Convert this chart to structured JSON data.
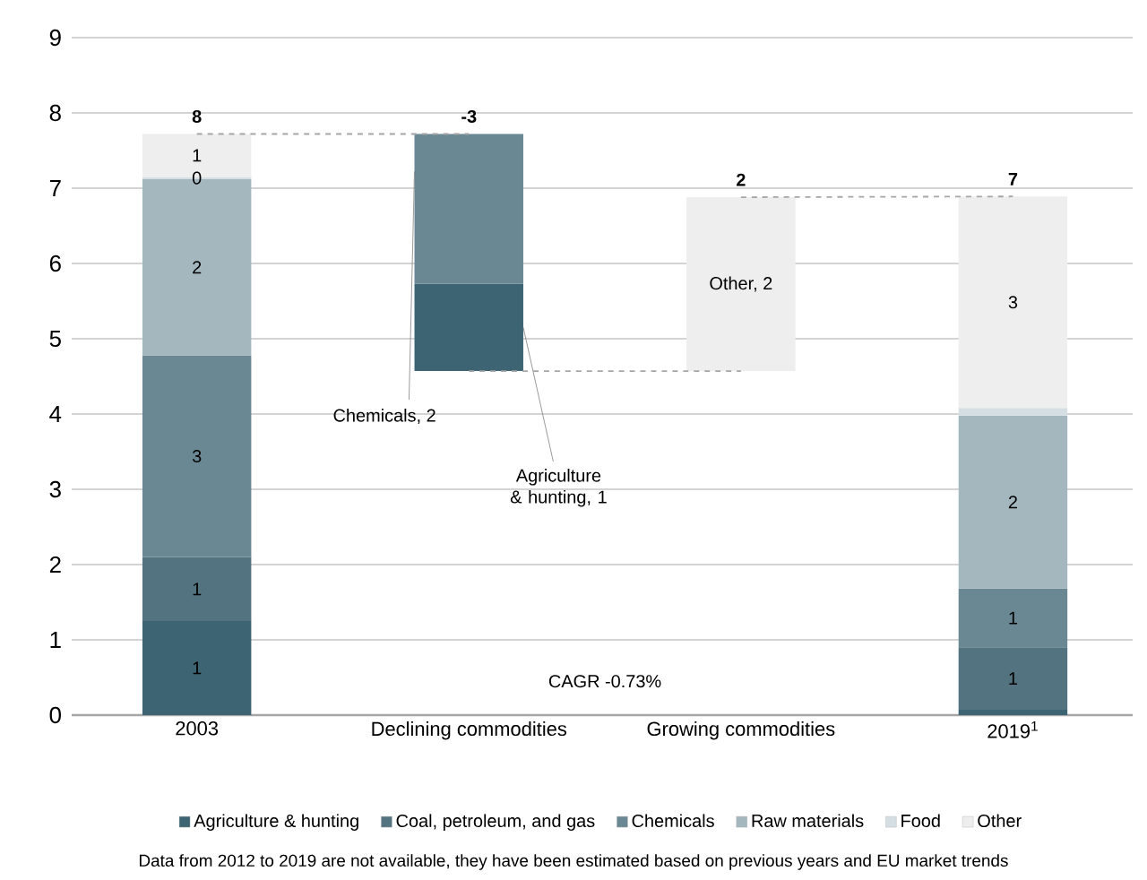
{
  "chart_data": {
    "type": "bar",
    "categories": [
      "2003",
      "Declining commodities",
      "Growing commodities",
      "2019$^{1}$"
    ],
    "series": [
      {
        "name": "Agriculture & hunting",
        "color": "#3d6472",
        "values": [
          1.25,
          1.16,
          null,
          0.07
        ],
        "base": [
          0,
          4.57,
          null,
          0
        ],
        "value_labels": [
          "1",
          "Agriculture & hunting, 1",
          null,
          null
        ]
      },
      {
        "name": "Coal, petroleum, and gas",
        "color": "#52737f",
        "values": [
          0.85,
          null,
          null,
          0.83
        ],
        "base": [
          1.25,
          null,
          null,
          0.07
        ],
        "value_labels": [
          "1",
          null,
          null,
          "1"
        ]
      },
      {
        "name": "Chemicals",
        "color": "#6a8893",
        "values": [
          2.68,
          1.99,
          null,
          0.78
        ],
        "base": [
          2.1,
          5.73,
          null,
          0.9
        ],
        "value_labels": [
          "3",
          "Chemicals, 2",
          null,
          "1"
        ]
      },
      {
        "name": "Raw materials",
        "color": "#a4b7bf",
        "values": [
          2.34,
          null,
          null,
          2.3
        ],
        "base": [
          4.78,
          null,
          null,
          1.68
        ],
        "value_labels": [
          "2",
          null,
          null,
          "2"
        ]
      },
      {
        "name": "Food",
        "color": "#d5dfe3",
        "values": [
          0.03,
          null,
          null,
          0.1
        ],
        "base": [
          7.12,
          null,
          null,
          3.98
        ],
        "value_labels": [
          "0",
          null,
          null,
          null
        ]
      },
      {
        "name": "Other",
        "color": "#eeeeee",
        "values": [
          0.57,
          null,
          2.31,
          2.81
        ],
        "base": [
          7.15,
          null,
          4.57,
          4.08
        ],
        "value_labels": [
          "1",
          null,
          "Other, 2",
          "3"
        ]
      },
      {
        "type": "line",
        "color": "#a6a6a6",
        "line_style": "dashed",
        "marker": "none",
        "values": [
          7.72,
          7.72,
          null,
          null
        ]
      },
      {
        "type": "line",
        "color": "#a6a6a6",
        "line_style": "dashed",
        "marker": "none",
        "values": [
          null,
          4.57,
          4.57,
          null
        ]
      },
      {
        "type": "line",
        "color": "#a6a6a6",
        "line_style": "dashed",
        "marker": "none",
        "values": [
          null,
          null,
          6.88,
          6.89
        ]
      }
    ],
    "totals": [
      "8",
      null,
      "2",
      "7"
    ],
    "ylim": [
      0,
      9
    ],
    "yticks": [
      0,
      1,
      2,
      3,
      4,
      5,
      6,
      7,
      8,
      9
    ],
    "grid": "y",
    "legend": "bottom",
    "annotations": [
      {
        "text": "-3",
        "x": "Declining commodities",
        "y": 7.72
      },
      "CAGR -0.73%",
      "Data from 2012 to 2019 are not available, they have been estimated based on previous years and EU market trends"
    ]
  }
}
